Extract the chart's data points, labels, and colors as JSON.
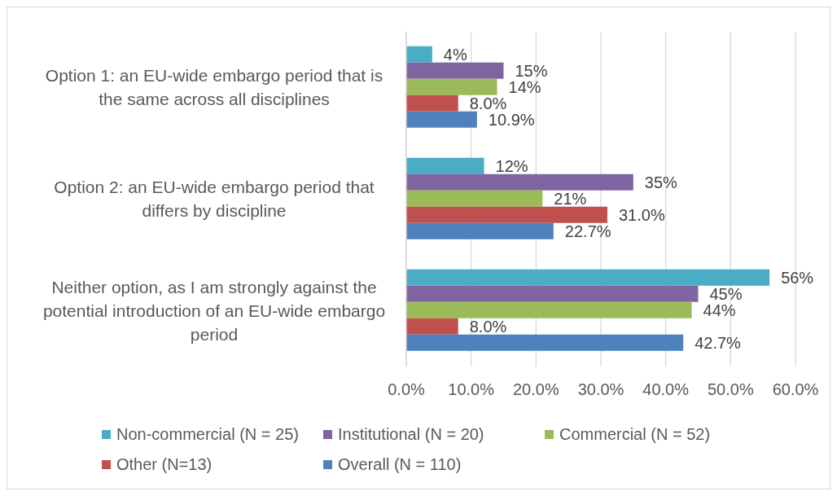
{
  "chart_data": {
    "type": "bar",
    "orientation": "horizontal",
    "categories": [
      "Option 1: an EU-wide embargo period that is the same across all disciplines",
      "Option 2: an EU-wide embargo period that differs by discipline",
      "Neither option, as I am strongly against the potential introduction of an EU-wide embargo period"
    ],
    "series": [
      {
        "name": "Non-commercial (N = 25)",
        "color": "#4bacc6",
        "values": [
          4,
          12,
          56
        ],
        "value_labels": [
          "4%",
          "12%",
          "56%"
        ]
      },
      {
        "name": "Institutional (N = 20)",
        "color": "#8064a2",
        "values": [
          15,
          35,
          45
        ],
        "value_labels": [
          "15%",
          "35%",
          "45%"
        ]
      },
      {
        "name": "Commercial (N = 52)",
        "color": "#9bbb59",
        "values": [
          14,
          21,
          44
        ],
        "value_labels": [
          "14%",
          "21%",
          "44%"
        ]
      },
      {
        "name": "Other (N=13)",
        "color": "#c0504d",
        "values": [
          8.0,
          31.0,
          8.0
        ],
        "value_labels": [
          "8.0%",
          "31.0%",
          "8.0%"
        ]
      },
      {
        "name": "Overall (N = 110)",
        "color": "#4f81bd",
        "values": [
          10.9,
          22.7,
          42.7
        ],
        "value_labels": [
          "10.9%",
          "22.7%",
          "42.7%"
        ]
      }
    ],
    "xlim": [
      0,
      60
    ],
    "xticks": [
      {
        "value": 0,
        "label": "0.0%"
      },
      {
        "value": 10,
        "label": "10.0%"
      },
      {
        "value": 20,
        "label": "20.0%"
      },
      {
        "value": 30,
        "label": "30.0%"
      },
      {
        "value": 40,
        "label": "40.0%"
      },
      {
        "value": 50,
        "label": "50.0%"
      },
      {
        "value": 60,
        "label": "60.0%"
      }
    ],
    "grid": "x",
    "legend": "bottom"
  }
}
